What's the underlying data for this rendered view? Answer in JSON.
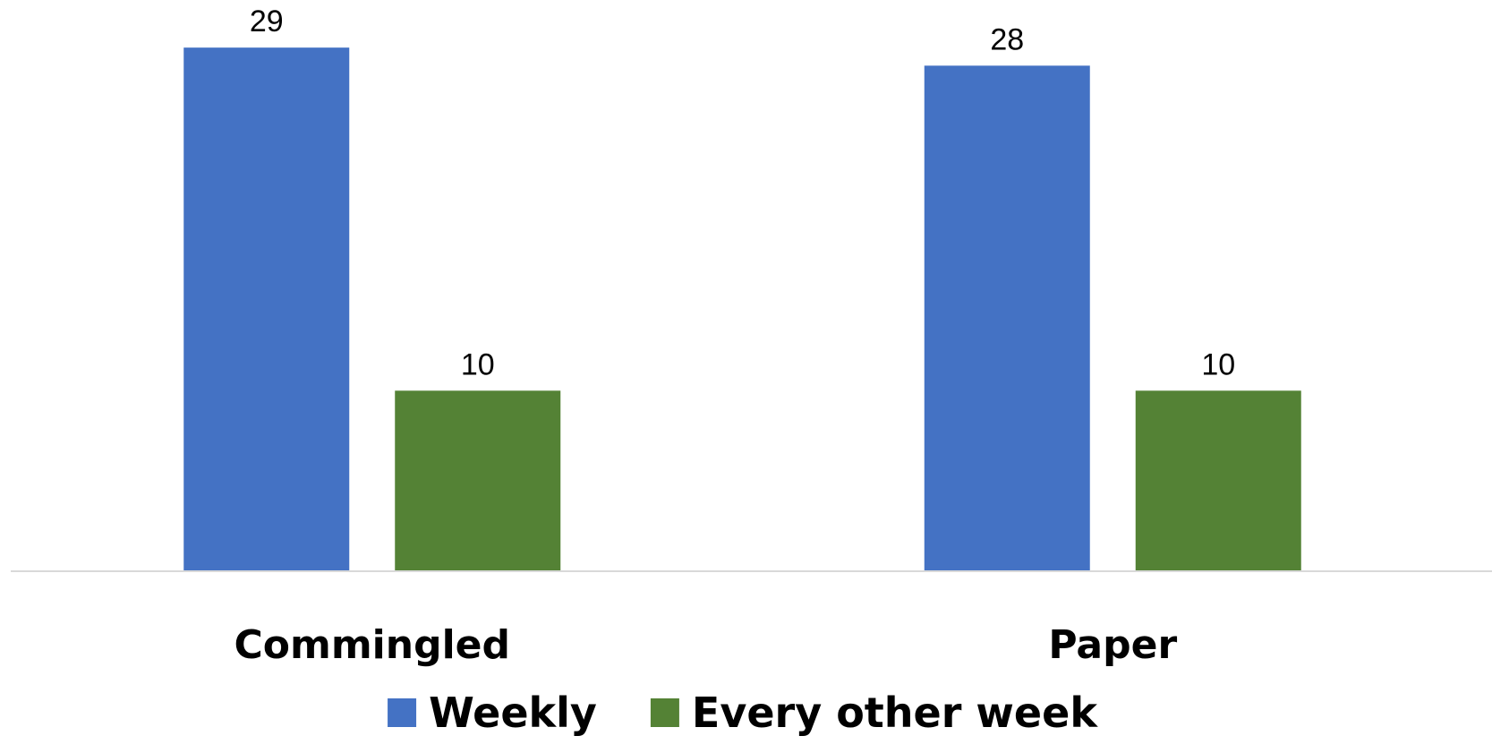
{
  "chart_data": {
    "type": "bar",
    "title": "",
    "xlabel": "",
    "ylabel": "",
    "categories": [
      "Commingled",
      "Paper"
    ],
    "series": [
      {
        "name": "Weekly",
        "color": "#4472C4",
        "values": [
          29,
          28
        ]
      },
      {
        "name": "Every other week",
        "color": "#548235",
        "values": [
          10,
          10
        ]
      }
    ],
    "ylim": [
      0,
      30
    ],
    "grid": false,
    "legend_position": "bottom",
    "data_labels": true
  }
}
